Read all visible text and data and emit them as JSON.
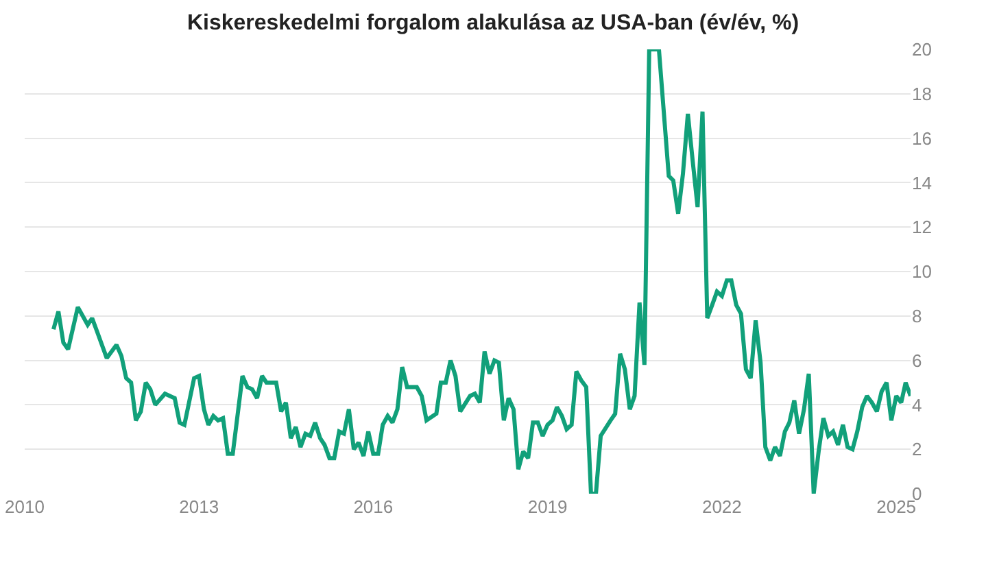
{
  "chart_data": {
    "type": "line",
    "title": "Kiskereskedelmi forgalom alakulása az USA-ban (év/év, %)",
    "x": [
      "2010-07",
      "2010-08",
      "2010-09",
      "2010-10",
      "2010-12",
      "2011-02",
      "2011-03",
      "2011-04",
      "2011-06",
      "2011-08",
      "2011-09",
      "2011-10",
      "2011-11",
      "2011-12",
      "2012-01",
      "2012-02",
      "2012-03",
      "2012-04",
      "2012-06",
      "2012-08",
      "2012-09",
      "2012-10",
      "2012-12",
      "2013-01",
      "2013-02",
      "2013-03",
      "2013-04",
      "2013-05",
      "2013-06",
      "2013-07",
      "2013-08",
      "2013-10",
      "2013-11",
      "2013-12",
      "2014-01",
      "2014-02",
      "2014-03",
      "2014-05",
      "2014-06",
      "2014-07",
      "2014-08",
      "2014-09",
      "2014-10",
      "2014-11",
      "2014-12",
      "2015-01",
      "2015-02",
      "2015-03",
      "2015-04",
      "2015-05",
      "2015-06",
      "2015-07",
      "2015-08",
      "2015-09",
      "2015-10",
      "2015-11",
      "2015-12",
      "2016-01",
      "2016-02",
      "2016-03",
      "2016-04",
      "2016-05",
      "2016-06",
      "2016-07",
      "2016-08",
      "2016-10",
      "2016-11",
      "2016-12",
      "2017-02",
      "2017-03",
      "2017-04",
      "2017-05",
      "2017-06",
      "2017-07",
      "2017-09",
      "2017-10",
      "2017-11",
      "2017-12",
      "2018-01",
      "2018-02",
      "2018-03",
      "2018-04",
      "2018-05",
      "2018-06",
      "2018-07",
      "2018-08",
      "2018-09",
      "2018-10",
      "2018-11",
      "2018-12",
      "2019-01",
      "2019-02",
      "2019-03",
      "2019-04",
      "2019-05",
      "2019-06",
      "2019-07",
      "2019-08",
      "2019-09",
      "2019-10",
      "2019-11",
      "2019-12",
      "2020-02",
      "2020-03",
      "2020-04",
      "2020-05",
      "2020-06",
      "2020-07",
      "2020-08",
      "2020-09",
      "2020-10",
      "2020-12",
      "2021-02",
      "2021-03",
      "2021-04",
      "2021-05",
      "2021-06",
      "2021-07",
      "2021-08",
      "2021-09",
      "2021-10",
      "2021-11",
      "2021-12",
      "2022-01",
      "2022-02",
      "2022-03",
      "2022-04",
      "2022-05",
      "2022-06",
      "2022-07",
      "2022-08",
      "2022-09",
      "2022-10",
      "2022-11",
      "2022-12",
      "2023-01",
      "2023-02",
      "2023-03",
      "2023-04",
      "2023-05",
      "2023-06",
      "2023-07",
      "2023-08",
      "2023-09",
      "2023-10",
      "2023-11",
      "2023-12",
      "2024-01",
      "2024-02",
      "2024-03",
      "2024-04",
      "2024-05",
      "2024-06",
      "2024-07",
      "2024-08",
      "2024-09",
      "2024-10",
      "2024-11",
      "2024-12",
      "2025-01",
      "2025-02",
      "2025-03",
      "2025-04"
    ],
    "series": [
      {
        "color": "#11a07a",
        "values": [
          7.4,
          8.2,
          6.8,
          6.5,
          8.4,
          7.6,
          7.9,
          7.3,
          6.1,
          6.7,
          6.2,
          5.2,
          5.0,
          3.3,
          3.7,
          5.0,
          4.7,
          4.0,
          4.5,
          4.3,
          3.2,
          3.1,
          5.2,
          5.3,
          3.8,
          3.1,
          3.5,
          3.3,
          3.4,
          1.8,
          1.8,
          5.3,
          4.8,
          4.7,
          4.3,
          5.3,
          5.0,
          5.0,
          3.7,
          4.1,
          2.5,
          3.0,
          2.1,
          2.7,
          2.6,
          3.2,
          2.5,
          2.2,
          1.6,
          1.6,
          2.8,
          2.7,
          3.8,
          2.0,
          2.3,
          1.7,
          2.8,
          1.8,
          1.8,
          3.1,
          3.5,
          3.2,
          3.8,
          5.7,
          4.8,
          4.8,
          4.4,
          3.3,
          3.6,
          5.0,
          5.0,
          6.0,
          5.3,
          3.7,
          4.4,
          4.5,
          4.1,
          6.4,
          5.4,
          6.0,
          5.9,
          3.3,
          4.3,
          3.8,
          1.1,
          1.9,
          1.6,
          3.2,
          3.2,
          2.6,
          3.1,
          3.3,
          3.9,
          3.5,
          2.9,
          3.1,
          5.5,
          5.1,
          4.8,
          0,
          0,
          2.6,
          3.3,
          3.6,
          6.3,
          5.6,
          3.8,
          4.4,
          8.6,
          5.8,
          20,
          20,
          14.3,
          14.1,
          12.6,
          14.4,
          17.1,
          15.0,
          12.9,
          17.2,
          7.9,
          8.5,
          9.1,
          8.9,
          9.6,
          9.6,
          8.5,
          8.1,
          5.6,
          5.2,
          7.8,
          5.9,
          2.1,
          1.5,
          2.1,
          1.7,
          2.8,
          3.2,
          4.2,
          2.7,
          3.8,
          5.4,
          0,
          1.9,
          3.4,
          2.6,
          2.8,
          2.2,
          3.1,
          2.1,
          2.0,
          2.8,
          3.9,
          4.4,
          4.1,
          3.7,
          4.6,
          5.0,
          3.3,
          4.4,
          4.1,
          5.0,
          4.4
        ]
      }
    ],
    "xlim": [
      "2010-01",
      "2025-04"
    ],
    "xticks": [
      "2010",
      "2013",
      "2016",
      "2019",
      "2022",
      "2025"
    ],
    "ylim": [
      0,
      20
    ],
    "yticks": [
      0,
      2,
      4,
      6,
      8,
      10,
      12,
      14,
      16,
      18,
      20
    ],
    "grid": "y",
    "marker": "none",
    "line_style": "solid"
  }
}
